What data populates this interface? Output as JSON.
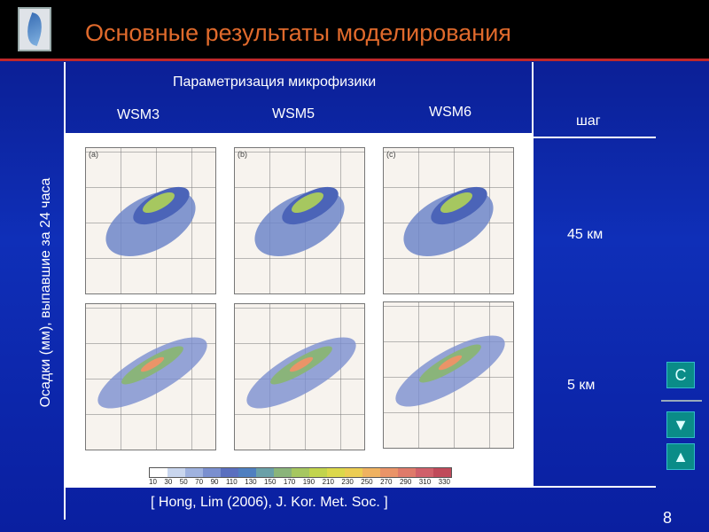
{
  "header": {
    "title": "Основные результаты моделирования"
  },
  "table": {
    "side_label": "Осадки (мм), выпавшие за 24 часа",
    "param_heading": "Параметризация микрофизики",
    "columns": [
      "WSM3",
      "WSM5",
      "WSM6"
    ],
    "step_heading": "шаг",
    "rows": [
      "45  км",
      "5  км"
    ]
  },
  "figure": {
    "panel_labels": [
      "(a)",
      "(b)",
      "(c)"
    ],
    "colorbar_ticks": [
      "10",
      "30",
      "50",
      "70",
      "90",
      "110",
      "130",
      "150",
      "170",
      "190",
      "210",
      "230",
      "250",
      "270",
      "290",
      "310",
      "330"
    ],
    "colorbar_colors": [
      "#ffffff",
      "#c9d6ee",
      "#9fb2df",
      "#7a8fcf",
      "#5a6fbf",
      "#4f7fc0",
      "#6aa0a8",
      "#8ab47a",
      "#a6c760",
      "#c2d44c",
      "#dcd84a",
      "#eccd52",
      "#efb260",
      "#ea9468",
      "#df7a6a",
      "#d0606a",
      "#c04a5a"
    ]
  },
  "citation": "[ Hong, Lim (2006), J. Kor. Met. Soc. ]",
  "nav": {
    "page_number": "8",
    "button_c": "С",
    "button_down": "▼",
    "button_up": "▲"
  }
}
